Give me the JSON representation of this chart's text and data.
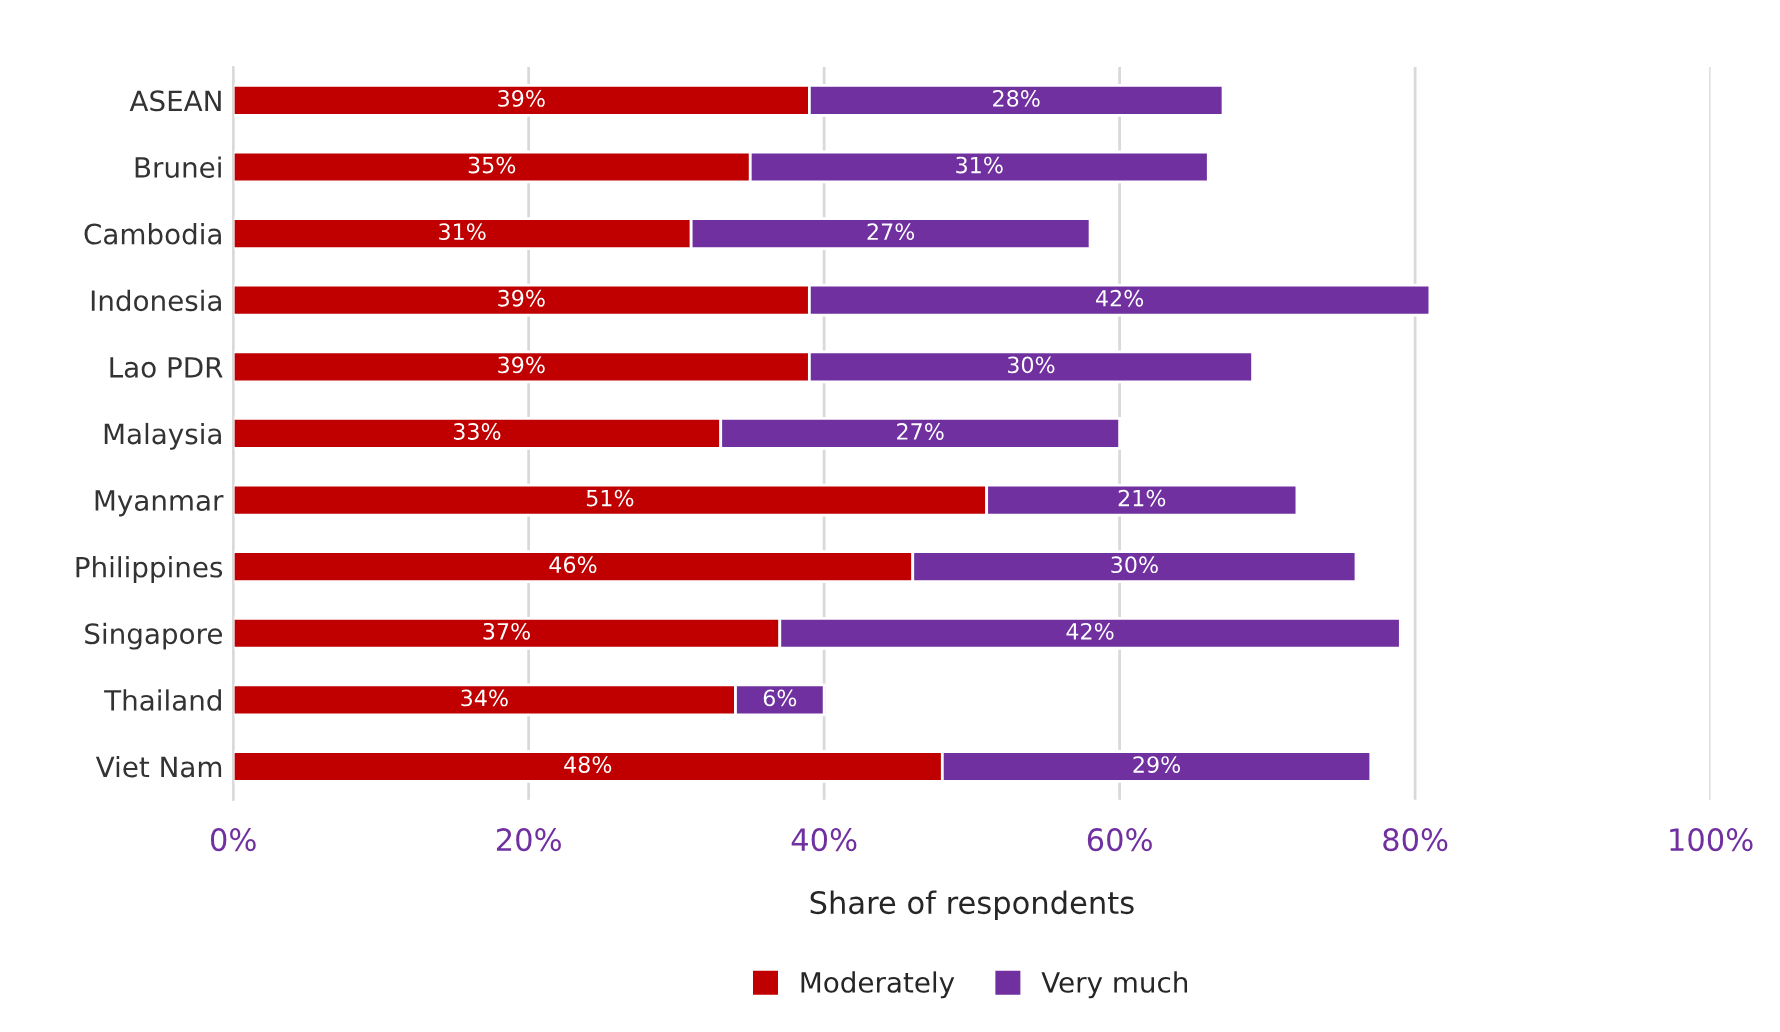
{
  "chart_data": {
    "type": "bar",
    "orientation": "horizontal",
    "stacked": true,
    "categories": [
      "ASEAN",
      "Brunei",
      "Cambodia",
      "Indonesia",
      "Lao PDR",
      "Malaysia",
      "Myanmar",
      "Philippines",
      "Singapore",
      "Thailand",
      "Viet Nam"
    ],
    "series": [
      {
        "name": "Moderately",
        "color": "#c00000",
        "values": [
          39,
          35,
          31,
          39,
          39,
          33,
          51,
          46,
          37,
          34,
          48
        ],
        "value_labels": [
          "39%",
          "35%",
          "31%",
          "39%",
          "39%",
          "33%",
          "51%",
          "46%",
          "37%",
          "34%",
          "48%"
        ]
      },
      {
        "name": "Very much",
        "color": "#7030a0",
        "values": [
          28,
          31,
          27,
          42,
          30,
          27,
          21,
          30,
          42,
          6,
          29
        ],
        "value_labels": [
          "28%",
          "31%",
          "27%",
          "42%",
          "30%",
          "27%",
          "21%",
          "30%",
          "42%",
          "6%",
          "29%"
        ]
      }
    ],
    "xlabel": "Share of respondents",
    "xlim": [
      0,
      100
    ],
    "xticks": [
      {
        "value": 0,
        "label": "0%"
      },
      {
        "value": 20,
        "label": "20%"
      },
      {
        "value": 40,
        "label": "40%"
      },
      {
        "value": 60,
        "label": "60%"
      },
      {
        "value": 80,
        "label": "80%"
      },
      {
        "value": 100,
        "label": "100%"
      }
    ],
    "grid": "x",
    "legend": "bottom"
  }
}
